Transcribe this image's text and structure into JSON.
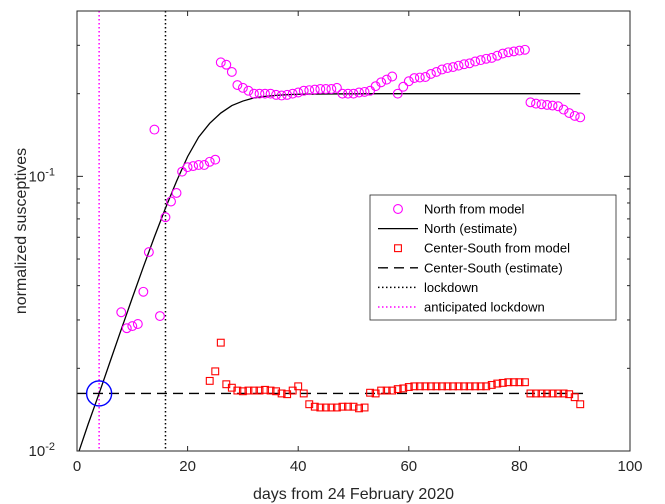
{
  "chart_data": {
    "type": "scatter",
    "xlabel": "days from 24 February 2020",
    "ylabel": "normalized susceptives",
    "xlim": [
      0,
      100
    ],
    "ylim": [
      0.01,
      0.4
    ],
    "yscale": "log",
    "x_ticks": [
      0,
      20,
      40,
      60,
      80,
      100
    ],
    "x_tick_labels": [
      "0",
      "20",
      "40",
      "60",
      "80",
      "100"
    ],
    "y_ticks": [
      0.01,
      0.1
    ],
    "y_tick_labels": [
      {
        "base": "10",
        "exp": "-2"
      },
      {
        "base": "10",
        "exp": "-1"
      }
    ],
    "grid": false,
    "legend_position": "center-right",
    "colors": {
      "north_model": "#ff00ff",
      "north_estimate": "#000000",
      "cs_model": "#ff0000",
      "cs_estimate": "#000000",
      "lockdown": "#000000",
      "anticipated": "#ff00ff",
      "marker_circle": "#0000ff"
    },
    "series": [
      {
        "name": "North from model",
        "marker": "circle",
        "x": [
          8,
          9,
          10,
          11,
          12,
          13,
          14,
          15,
          16,
          17,
          18,
          19,
          20,
          21,
          22,
          23,
          24,
          25,
          26,
          27,
          28,
          29,
          30,
          31,
          32,
          33,
          34,
          35,
          36,
          37,
          38,
          39,
          40,
          41,
          42,
          43,
          44,
          45,
          46,
          47,
          48,
          49,
          50,
          51,
          52,
          53,
          54,
          55,
          56,
          57,
          58,
          59,
          60,
          61,
          62,
          63,
          64,
          65,
          66,
          67,
          68,
          69,
          70,
          71,
          72,
          73,
          74,
          75,
          76,
          77,
          78,
          79,
          80,
          81,
          82,
          83,
          84,
          85,
          86,
          87,
          88,
          89,
          90,
          91
        ],
        "values": [
          0.032,
          0.028,
          0.0285,
          0.029,
          0.038,
          0.053,
          0.148,
          0.031,
          0.071,
          0.081,
          0.087,
          0.104,
          0.108,
          0.109,
          0.11,
          0.11,
          0.113,
          0.115,
          0.26,
          0.255,
          0.24,
          0.215,
          0.21,
          0.205,
          0.2,
          0.2,
          0.2,
          0.2,
          0.198,
          0.197,
          0.198,
          0.2,
          0.202,
          0.205,
          0.206,
          0.207,
          0.208,
          0.208,
          0.208,
          0.21,
          0.2,
          0.2,
          0.2,
          0.202,
          0.203,
          0.205,
          0.213,
          0.22,
          0.225,
          0.231,
          0.2,
          0.212,
          0.222,
          0.228,
          0.229,
          0.23,
          0.236,
          0.24,
          0.245,
          0.248,
          0.25,
          0.253,
          0.256,
          0.258,
          0.262,
          0.265,
          0.268,
          0.27,
          0.275,
          0.28,
          0.283,
          0.285,
          0.287,
          0.289,
          0.186,
          0.184,
          0.183,
          0.182,
          0.181,
          0.18,
          0.175,
          0.17,
          0.166,
          0.164
        ]
      },
      {
        "name": "North (estimate)",
        "line": "solid",
        "x": [
          0,
          2,
          4,
          6,
          8,
          10,
          12,
          14,
          16,
          18,
          20,
          22,
          24,
          26,
          28,
          30,
          32,
          34,
          36,
          38,
          40,
          45,
          50,
          55,
          60,
          70,
          80,
          91
        ],
        "values": [
          0.0095,
          0.0125,
          0.0162,
          0.0212,
          0.0277,
          0.0361,
          0.0468,
          0.0602,
          0.0766,
          0.096,
          0.118,
          0.139,
          0.156,
          0.17,
          0.181,
          0.188,
          0.193,
          0.1955,
          0.1972,
          0.1983,
          0.199,
          0.1996,
          0.1998,
          0.2,
          0.2,
          0.2,
          0.2,
          0.2
        ]
      },
      {
        "name": "Center-South from model",
        "marker": "square",
        "x": [
          24,
          25,
          26,
          27,
          28,
          29,
          30,
          31,
          32,
          33,
          34,
          35,
          36,
          37,
          38,
          39,
          40,
          41,
          42,
          43,
          44,
          45,
          46,
          47,
          48,
          49,
          50,
          51,
          52,
          53,
          54,
          55,
          56,
          57,
          58,
          59,
          60,
          61,
          62,
          63,
          64,
          65,
          66,
          67,
          68,
          69,
          70,
          71,
          72,
          73,
          74,
          75,
          76,
          77,
          78,
          79,
          80,
          81,
          82,
          83,
          84,
          85,
          86,
          87,
          88,
          89,
          90,
          91
        ],
        "values": [
          0.018,
          0.0195,
          0.0248,
          0.0175,
          0.017,
          0.0166,
          0.0165,
          0.0166,
          0.0166,
          0.0166,
          0.0167,
          0.0166,
          0.0165,
          0.0162,
          0.0161,
          0.0166,
          0.0172,
          0.0162,
          0.0148,
          0.0145,
          0.0144,
          0.0144,
          0.0144,
          0.0144,
          0.0145,
          0.0145,
          0.0145,
          0.0143,
          0.0144,
          0.0163,
          0.0162,
          0.0166,
          0.0166,
          0.0166,
          0.0168,
          0.0169,
          0.0171,
          0.0172,
          0.0172,
          0.0172,
          0.0172,
          0.0172,
          0.0172,
          0.0172,
          0.0172,
          0.0172,
          0.0172,
          0.0172,
          0.0172,
          0.0172,
          0.0172,
          0.0174,
          0.0176,
          0.0177,
          0.0178,
          0.0178,
          0.0178,
          0.0178,
          0.0162,
          0.0162,
          0.0162,
          0.0162,
          0.0162,
          0.0162,
          0.0162,
          0.0161,
          0.0157,
          0.0148
        ]
      },
      {
        "name": "Center-South (estimate)",
        "line": "dashed",
        "x": [
          0,
          92
        ],
        "values": [
          0.0162,
          0.0162
        ]
      },
      {
        "name": "lockdown",
        "line": "dotted-vertical",
        "x": [
          16
        ]
      },
      {
        "name": "anticipated lockdown",
        "line": "dotted-vertical",
        "x": [
          4
        ]
      }
    ],
    "annotations": [
      {
        "type": "circle",
        "x": 4,
        "y": 0.0162
      }
    ]
  }
}
